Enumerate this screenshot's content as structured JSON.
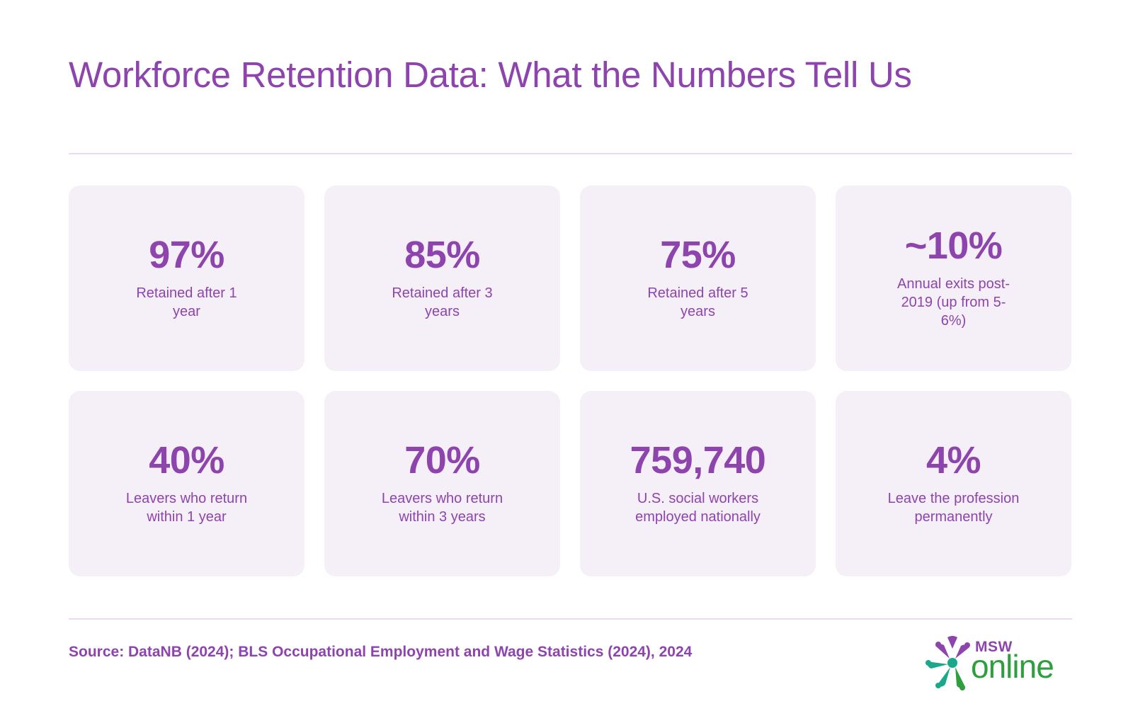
{
  "title": "Workforce Retention Data: What the Numbers Tell Us",
  "stats": [
    {
      "value": "97%",
      "label": "Retained after 1 year"
    },
    {
      "value": "85%",
      "label": "Retained after 3 years"
    },
    {
      "value": "75%",
      "label": "Retained after 5 years"
    },
    {
      "value": "~10%",
      "label": "Annual exits post-2019 (up from 5-6%)"
    },
    {
      "value": "40%",
      "label": "Leavers who return within 1 year"
    },
    {
      "value": "70%",
      "label": "Leavers who return within 3 years"
    },
    {
      "value": "759,740",
      "label": "U.S. social workers employed nationally"
    },
    {
      "value": "4%",
      "label": "Leave the profession permanently"
    }
  ],
  "source": "Source: DataNB (2024); BLS Occupational Employment and Wage Statistics (2024), 2024",
  "logo": {
    "msw": "MSW",
    "online": "online",
    "icon": "star-people-icon"
  },
  "colors": {
    "accent": "#8e44ad",
    "card_bg": "#f5eff7",
    "rule": "#ead9f1",
    "logo_green": "#2e9e3f"
  }
}
